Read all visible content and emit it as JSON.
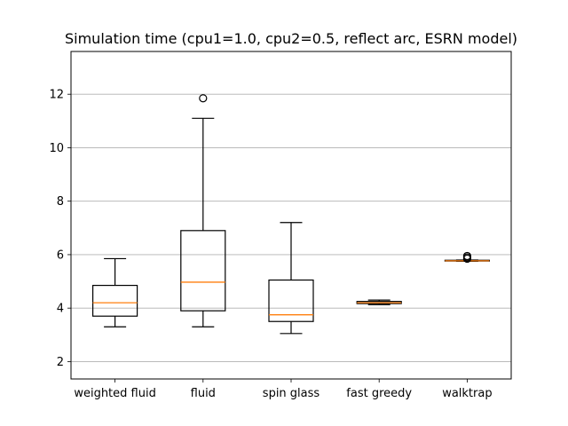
{
  "chart_data": {
    "type": "boxplot",
    "title": "Simulation time (cpu1=1.0, cpu2=0.5, reflect arc, ESRN model)",
    "xlabel": "",
    "ylabel": "",
    "ylim": [
      1.35,
      13.6
    ],
    "yticks": [
      2,
      4,
      6,
      8,
      10,
      12
    ],
    "grid": "y",
    "box_color": "#000000",
    "median_color": "#ff7f0e",
    "grid_color": "#b0b0b0",
    "categories": [
      "weighted fluid",
      "fluid",
      "spin glass",
      "fast greedy",
      "walktrap"
    ],
    "boxes": [
      {
        "whisker_low": 3.3,
        "q1": 3.7,
        "median": 4.2,
        "q3": 4.85,
        "whisker_high": 5.85,
        "outliers": []
      },
      {
        "whisker_low": 3.3,
        "q1": 3.9,
        "median": 4.97,
        "q3": 6.9,
        "whisker_high": 11.1,
        "outliers": [
          11.85
        ]
      },
      {
        "whisker_low": 3.05,
        "q1": 3.5,
        "median": 3.75,
        "q3": 5.05,
        "whisker_high": 7.2,
        "outliers": []
      },
      {
        "whisker_low": 4.13,
        "q1": 4.17,
        "median": 4.2,
        "q3": 4.25,
        "whisker_high": 4.3,
        "outliers": []
      },
      {
        "whisker_low": 5.75,
        "q1": 5.76,
        "median": 5.77,
        "q3": 5.79,
        "whisker_high": 5.8,
        "outliers": [
          5.85,
          5.9,
          5.95
        ]
      }
    ]
  }
}
